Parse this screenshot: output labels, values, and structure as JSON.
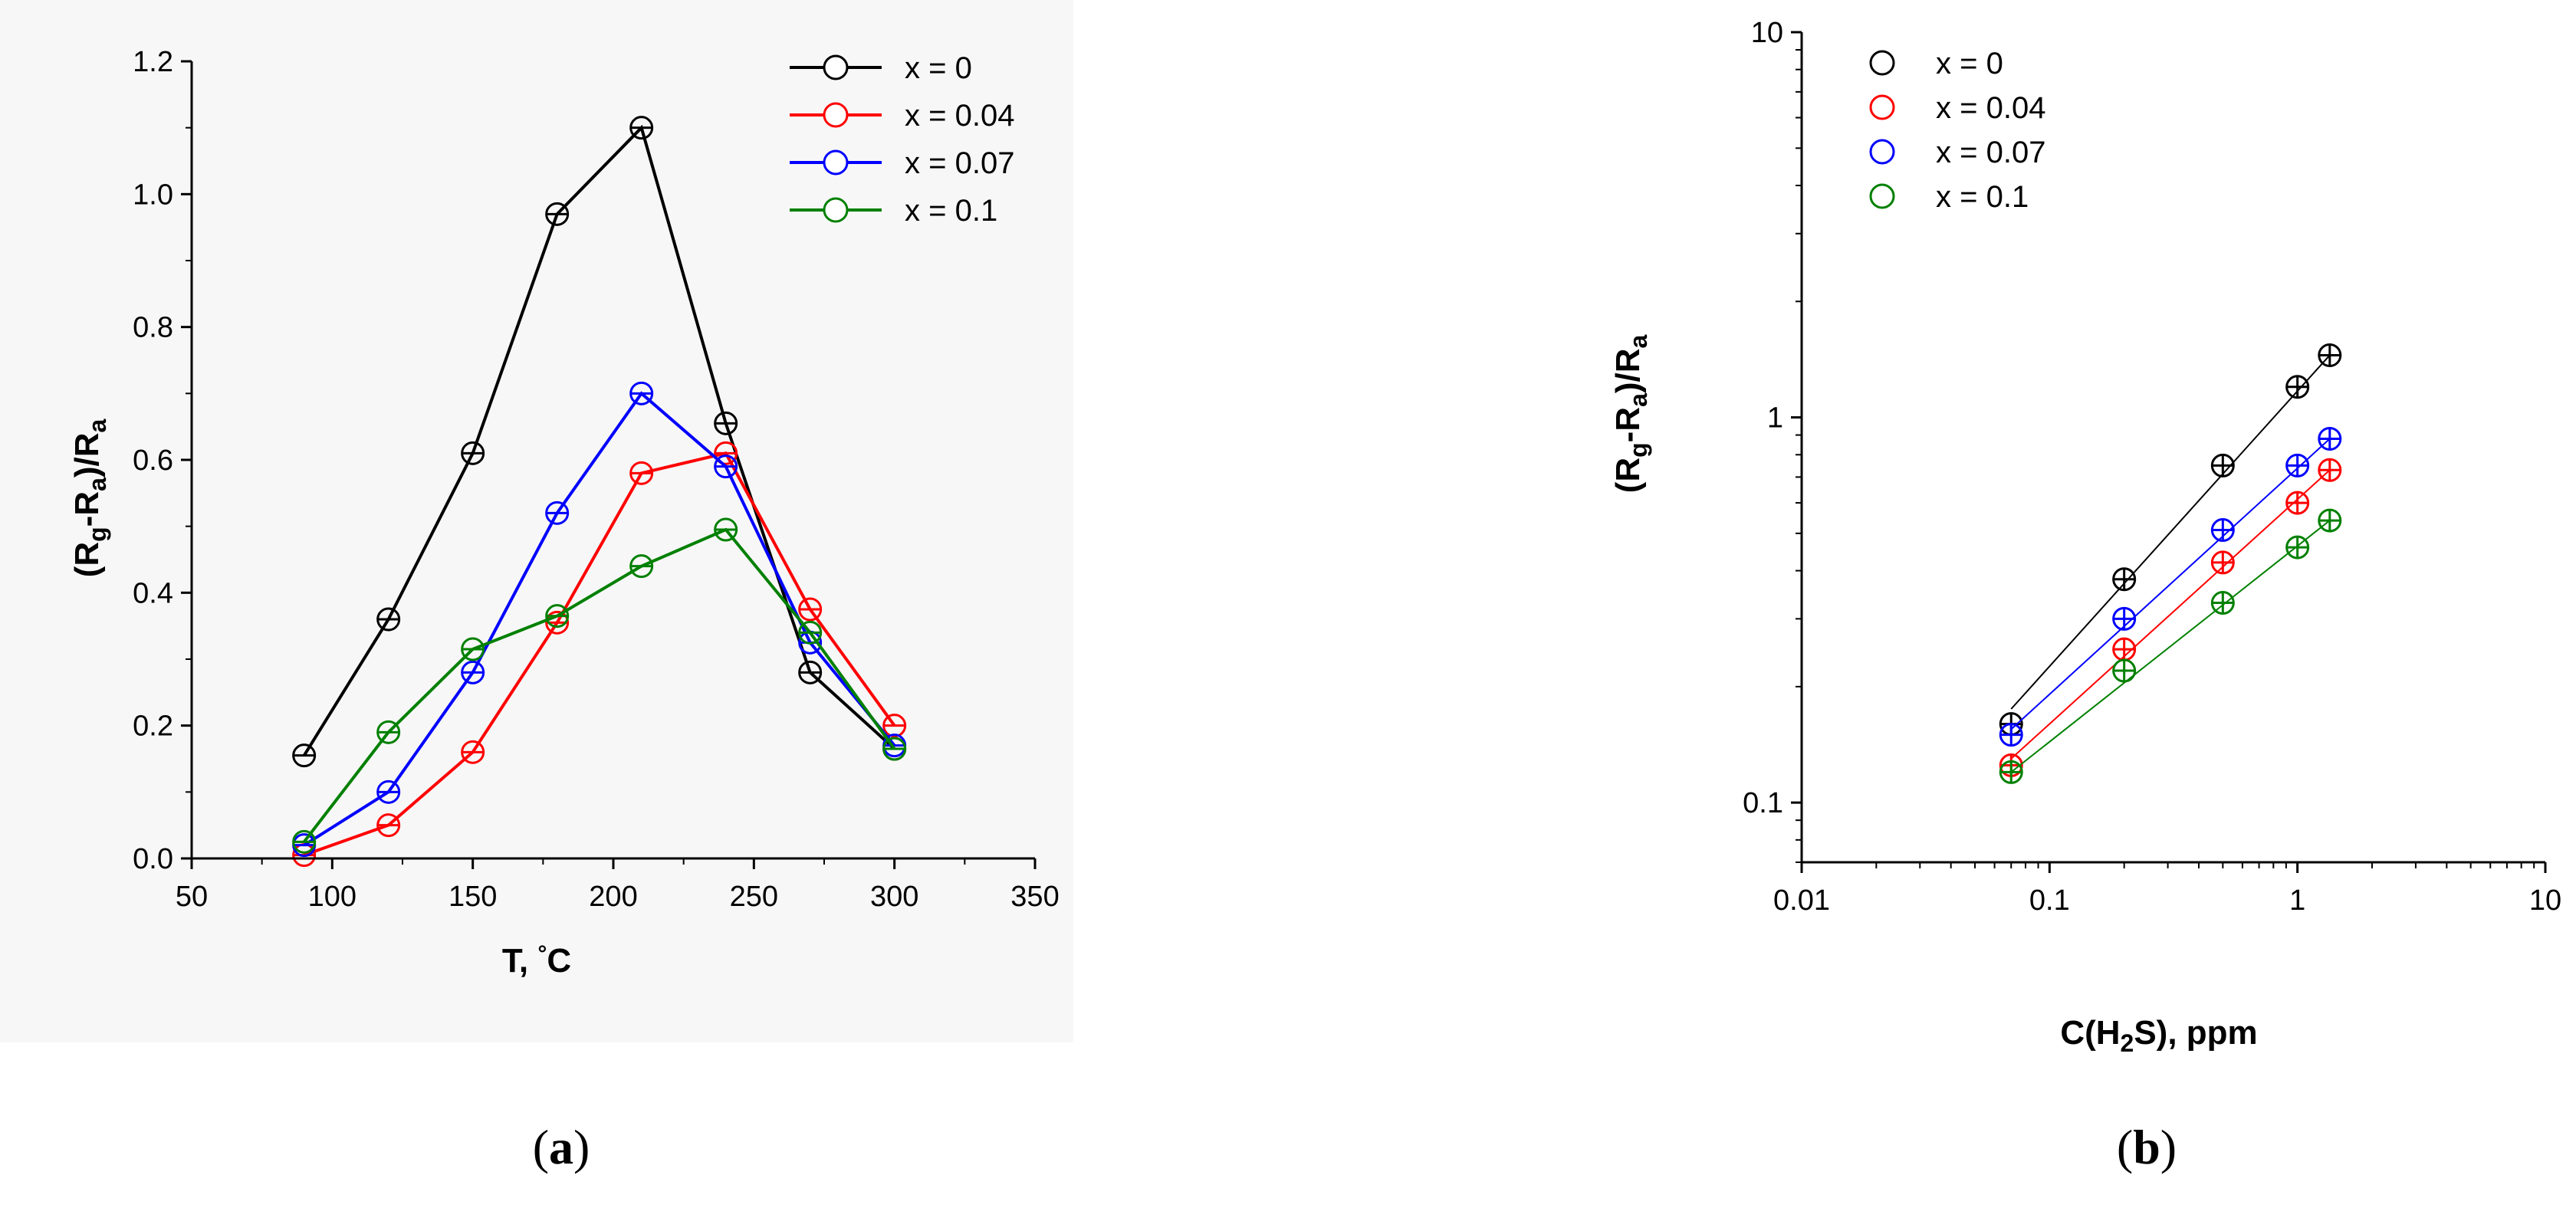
{
  "chart_data": [
    {
      "panel": "a",
      "type": "line",
      "caption_open": "(",
      "caption_letter": "a",
      "caption_close": ")",
      "xlabel": "T, °C",
      "ylabel": "(Rg-Ra)/Ra",
      "xlim": [
        50,
        350
      ],
      "ylim": [
        0,
        1.2
      ],
      "xticks": [
        50,
        100,
        150,
        200,
        250,
        300,
        350
      ],
      "yticks": [
        0.0,
        0.2,
        0.4,
        0.6,
        0.8,
        1.0,
        1.2
      ],
      "ytick_labels": [
        "0.0",
        "0.2",
        "0.4",
        "0.6",
        "0.8",
        "1.0",
        "1.2"
      ],
      "legend_position": "top-right",
      "x": [
        90,
        120,
        150,
        180,
        210,
        240,
        270,
        300
      ],
      "series": [
        {
          "name": "x = 0",
          "color": "#000000",
          "values": [
            0.155,
            0.36,
            0.61,
            0.97,
            1.1,
            0.655,
            0.28,
            0.165
          ]
        },
        {
          "name": "x = 0.04",
          "color": "#ff0000",
          "values": [
            0.005,
            0.05,
            0.16,
            0.355,
            0.58,
            0.61,
            0.375,
            0.2
          ]
        },
        {
          "name": "x = 0.07",
          "color": "#0000ff",
          "values": [
            0.02,
            0.1,
            0.28,
            0.52,
            0.7,
            0.59,
            0.325,
            0.17
          ]
        },
        {
          "name": "x = 0.1",
          "color": "#008000",
          "values": [
            0.025,
            0.19,
            0.315,
            0.365,
            0.44,
            0.495,
            0.34,
            0.165
          ]
        }
      ]
    },
    {
      "panel": "b",
      "type": "scatter",
      "caption_open": "(",
      "caption_letter": "b",
      "caption_close": ")",
      "xlabel": "C(H2S), ppm",
      "ylabel": "(Rg-Ra)/Ra",
      "xscale": "log",
      "yscale": "log",
      "xlim": [
        0.01,
        10
      ],
      "ylim": [
        0.07,
        10
      ],
      "xticks": [
        0.01,
        0.1,
        1,
        10
      ],
      "xtick_labels": [
        "0.01",
        "0.1",
        "1",
        "10"
      ],
      "yticks": [
        0.1,
        1,
        10
      ],
      "ytick_labels": [
        "0.1",
        "1",
        "10"
      ],
      "legend_position": "top-left",
      "x": [
        0.07,
        0.2,
        0.5,
        1.0,
        1.35
      ],
      "series": [
        {
          "name": "x = 0",
          "color": "#000000",
          "values": [
            0.16,
            0.38,
            0.75,
            1.2,
            1.45
          ],
          "fit": [
            0.175,
            1.45
          ]
        },
        {
          "name": "x = 0.04",
          "color": "#ff0000",
          "values": [
            0.125,
            0.25,
            0.42,
            0.6,
            0.73
          ],
          "fit": [
            0.13,
            0.73
          ]
        },
        {
          "name": "x = 0.07",
          "color": "#0000ff",
          "values": [
            0.15,
            0.3,
            0.51,
            0.75,
            0.88
          ],
          "fit": [
            0.155,
            0.88
          ]
        },
        {
          "name": "x = 0.1",
          "color": "#008000",
          "values": [
            0.12,
            0.22,
            0.33,
            0.46,
            0.54
          ],
          "fit": [
            0.12,
            0.54
          ]
        }
      ]
    }
  ]
}
